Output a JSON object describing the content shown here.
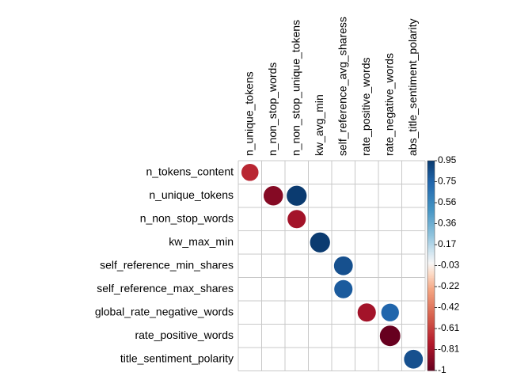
{
  "chart_data": {
    "type": "heatmap",
    "title": "",
    "columns": [
      "n_unique_tokens",
      "n_non_stop_words",
      "n_non_stop_unique_tokens",
      "kw_avg_min",
      "self_reference_avg_sharess",
      "rate_positive_words",
      "rate_negative_words",
      "abs_title_sentiment_polarity"
    ],
    "rows": [
      "n_tokens_content",
      "n_unique_tokens",
      "n_non_stop_words",
      "kw_max_min",
      "self_reference_min_shares",
      "self_reference_max_shares",
      "global_rate_negative_words",
      "rate_positive_words",
      "title_sentiment_polarity"
    ],
    "cells": [
      {
        "row": 0,
        "col": 0,
        "value": -0.7
      },
      {
        "row": 1,
        "col": 1,
        "value": -0.9
      },
      {
        "row": 1,
        "col": 2,
        "value": 0.95
      },
      {
        "row": 2,
        "col": 2,
        "value": -0.8
      },
      {
        "row": 3,
        "col": 3,
        "value": 0.95
      },
      {
        "row": 4,
        "col": 4,
        "value": 0.85
      },
      {
        "row": 5,
        "col": 4,
        "value": 0.8
      },
      {
        "row": 6,
        "col": 5,
        "value": -0.8
      },
      {
        "row": 6,
        "col": 6,
        "value": 0.75
      },
      {
        "row": 7,
        "col": 6,
        "value": -1.0
      },
      {
        "row": 8,
        "col": 7,
        "value": 0.85
      }
    ],
    "colorbar": {
      "ticks": [
        "0.95",
        "0.75",
        "0.56",
        "0.36",
        "0.17",
        "-0.03",
        "-0.22",
        "-0.42",
        "-0.61",
        "-0.81",
        "-1"
      ],
      "range": [
        -1,
        0.95
      ]
    },
    "colors": {
      "negative": "#67001F",
      "neutral": "#F7F7F7",
      "positive": "#053061",
      "grid": "#C8C8C8"
    }
  }
}
